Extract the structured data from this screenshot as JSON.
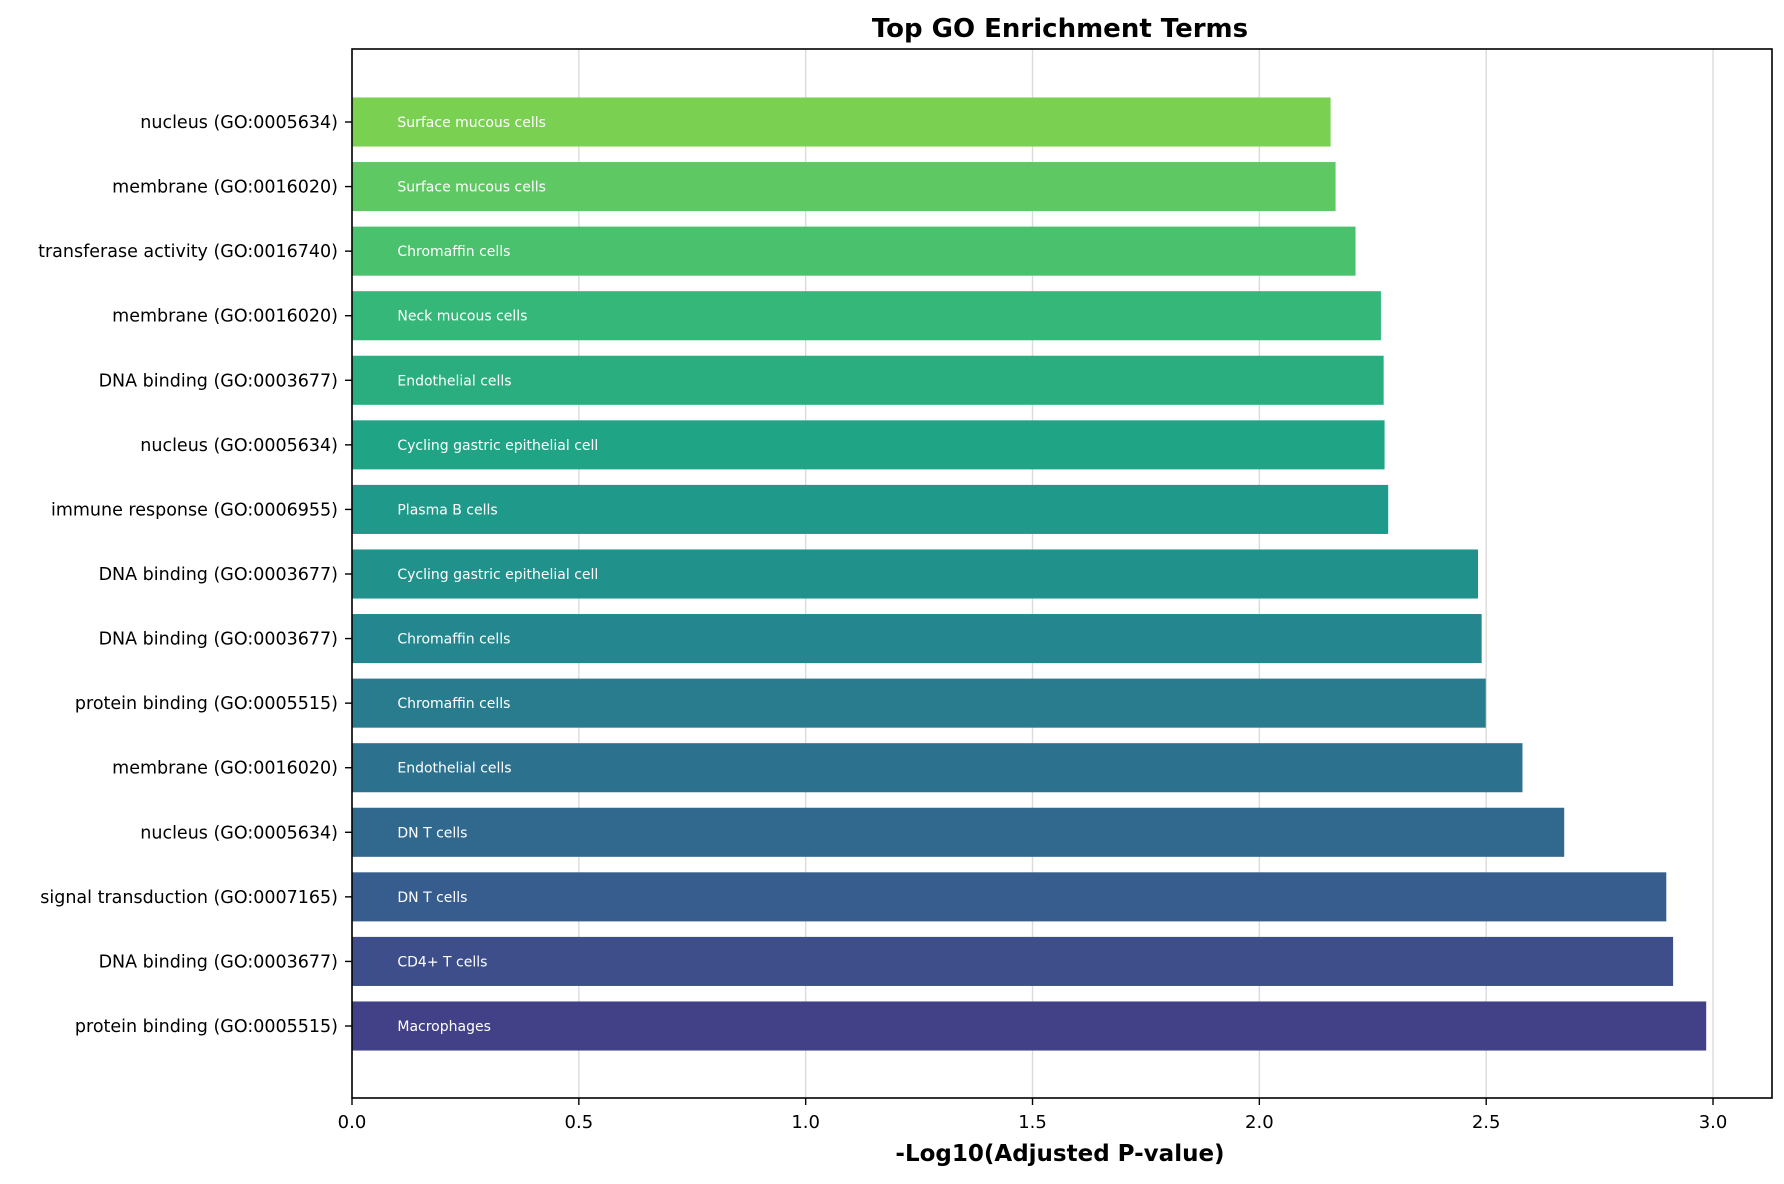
{
  "chart_data": {
    "type": "bar",
    "orientation": "horizontal",
    "title": "Top GO Enrichment Terms",
    "xlabel": "-Log10(Adjusted P-value)",
    "ylabel": "",
    "xlim": [
      0,
      3.13
    ],
    "x_ticks": [
      0.0,
      0.5,
      1.0,
      1.5,
      2.0,
      2.5,
      3.0
    ],
    "x_tick_labels": [
      "0.0",
      "0.5",
      "1.0",
      "1.5",
      "2.0",
      "2.5",
      "3.0"
    ],
    "grid": "vertical lines",
    "colormap": "viridis",
    "bars": [
      {
        "term": "protein binding (GO:0005515)",
        "cell_type": "Macrophages",
        "value": 2.985,
        "color": "#424086"
      },
      {
        "term": "DNA binding (GO:0003677)",
        "cell_type": "CD4+ T cells",
        "value": 2.912,
        "color": "#3d4e8a"
      },
      {
        "term": "signal transduction (GO:0007165)",
        "cell_type": "DN T cells",
        "value": 2.897,
        "color": "#365d8d"
      },
      {
        "term": "nucleus (GO:0005634)",
        "cell_type": "DN T cells",
        "value": 2.672,
        "color": "#31688e"
      },
      {
        "term": "membrane (GO:0016020)",
        "cell_type": "Endothelial cells",
        "value": 2.58,
        "color": "#2c728e"
      },
      {
        "term": "protein binding (GO:0005515)",
        "cell_type": "Chromaffin cells",
        "value": 2.499,
        "color": "#287c8e"
      },
      {
        "term": "DNA binding (GO:0003677)",
        "cell_type": "Chromaffin cells",
        "value": 2.49,
        "color": "#24868e"
      },
      {
        "term": "DNA binding (GO:0003677)",
        "cell_type": "Cycling gastric epithelial cell",
        "value": 2.482,
        "color": "#21918c"
      },
      {
        "term": "immune response (GO:0006955)",
        "cell_type": "Plasma B cells",
        "value": 2.284,
        "color": "#1f9a8a"
      },
      {
        "term": "nucleus (GO:0005634)",
        "cell_type": "Cycling gastric epithelial cell",
        "value": 2.276,
        "color": "#20a486"
      },
      {
        "term": "DNA binding (GO:0003677)",
        "cell_type": "Endothelial cells",
        "value": 2.274,
        "color": "#2aae80"
      },
      {
        "term": "membrane (GO:0016020)",
        "cell_type": "Neck mucous cells",
        "value": 2.268,
        "color": "#35b779"
      },
      {
        "term": "transferase activity (GO:0016740)",
        "cell_type": "Chromaffin cells",
        "value": 2.212,
        "color": "#49c16d"
      },
      {
        "term": "membrane (GO:0016020)",
        "cell_type": "Surface mucous cells",
        "value": 2.168,
        "color": "#5ec962"
      },
      {
        "term": "nucleus (GO:0005634)",
        "cell_type": "Surface mucous cells",
        "value": 2.157,
        "color": "#7ad151"
      }
    ]
  }
}
